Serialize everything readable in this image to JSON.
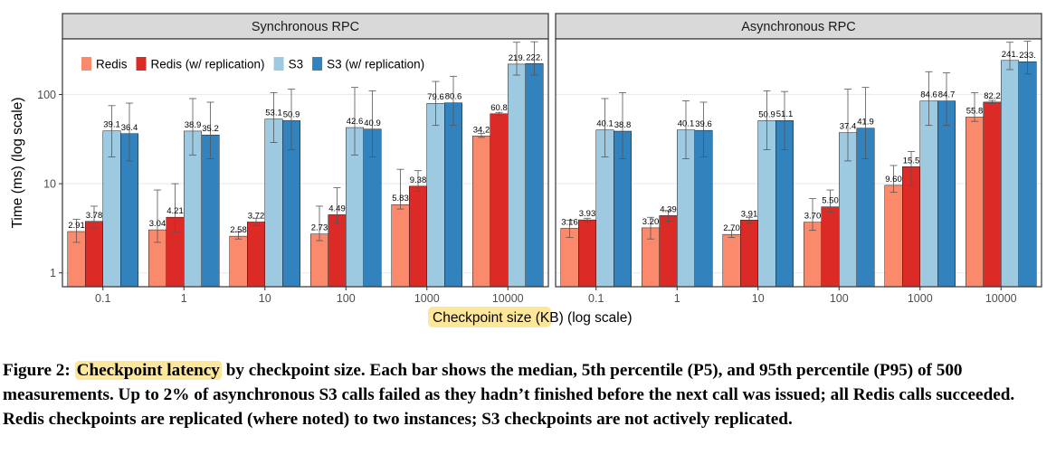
{
  "chart_data": {
    "type": "bar",
    "ylabel": "Time (ms) (log scale)",
    "xlabel_highlight": "Checkpoint size",
    "xlabel_rest": " (KB) (log scale)",
    "yscale": "log",
    "ylim": [
      0.7,
      420
    ],
    "yticks": [
      1,
      10,
      100
    ],
    "ytick_labels": [
      "1",
      "10",
      "100"
    ],
    "grid": true,
    "legend": "top-left",
    "categories": [
      "0.1",
      "1",
      "10",
      "100",
      "1000",
      "10000"
    ],
    "series_names": [
      "Redis",
      "Redis (w/ replication)",
      "S3",
      "S3 (w/ replication)"
    ],
    "colors": [
      "#fb8a6c",
      "#dc2b26",
      "#9ecae1",
      "#3182bd"
    ],
    "panels": [
      {
        "title": "Synchronous RPC",
        "series": [
          {
            "name": "Redis",
            "values": [
              2.91,
              3.04,
              2.58,
              2.73,
              5.83,
              34.2
            ],
            "labels": [
              "2.91",
              "3.04",
              "2.58",
              "2.73",
              "5.83",
              "34.2"
            ],
            "p5": [
              2.2,
              2.2,
              2.4,
              2.3,
              5.2,
              33.0
            ],
            "p95": [
              4.0,
              8.5,
              2.9,
              5.6,
              14.5,
              36.5
            ]
          },
          {
            "name": "Redis (w/ replication)",
            "values": [
              3.78,
              4.21,
              3.72,
              4.49,
              9.38,
              60.8
            ],
            "labels": [
              "3.78",
              "4.21",
              "3.72",
              "4.49",
              "9.38",
              "60.8"
            ],
            "p5": [
              3.2,
              2.9,
              3.4,
              3.6,
              8.2,
              58.0
            ],
            "p95": [
              5.6,
              10.0,
              4.1,
              9.0,
              14.0,
              63.0
            ]
          },
          {
            "name": "S3",
            "values": [
              39.1,
              38.9,
              53.1,
              42.6,
              79.6,
              219
            ],
            "labels": [
              "39.1",
              "38.9",
              "53.1",
              "42.6",
              "79.6",
              "219."
            ],
            "p5": [
              20.0,
              21.0,
              29.0,
              21.0,
              45.0,
              165.0
            ],
            "p95": [
              75.0,
              90.0,
              105.0,
              120.0,
              140.0,
              385.0
            ]
          },
          {
            "name": "S3 (w/ replication)",
            "values": [
              36.4,
              35.2,
              50.9,
              40.9,
              80.6,
              222
            ],
            "labels": [
              "36.4",
              "35.2",
              "50.9",
              "40.9",
              "80.6",
              "222."
            ],
            "p5": [
              18.0,
              19.0,
              24.0,
              20.0,
              45.0,
              165.0
            ],
            "p95": [
              80.0,
              82.0,
              115.0,
              110.0,
              160.0,
              390.0
            ]
          }
        ]
      },
      {
        "title": "Asynchronous RPC",
        "series": [
          {
            "name": "Redis",
            "values": [
              3.16,
              3.2,
              2.7,
              3.7,
              9.6,
              55.8
            ],
            "labels": [
              "3.16",
              "3.20",
              "2.70",
              "3.70",
              "9.60",
              "55.8"
            ],
            "p5": [
              2.5,
              2.4,
              2.5,
              3.0,
              8.0,
              50.0
            ],
            "p95": [
              3.9,
              4.2,
              3.0,
              6.8,
              16.0,
              105.0
            ]
          },
          {
            "name": "Redis (w/ replication)",
            "values": [
              3.93,
              4.39,
              3.91,
              5.5,
              15.5,
              82.2
            ],
            "labels": [
              "3.93",
              "4.39",
              "3.91",
              "5.50",
              "15.5",
              "82.2"
            ],
            "p5": [
              3.7,
              3.8,
              3.6,
              4.8,
              9.5,
              79.0
            ],
            "p95": [
              4.1,
              5.0,
              4.2,
              8.5,
              23.0,
              86.0
            ]
          },
          {
            "name": "S3",
            "values": [
              40.1,
              40.1,
              50.9,
              37.4,
              84.6,
              241
            ],
            "labels": [
              "40.1",
              "40.1",
              "50.9",
              "37.4",
              "84.6",
              "241."
            ],
            "p5": [
              20.0,
              19.0,
              24.0,
              18.0,
              45.0,
              190.0
            ],
            "p95": [
              90.0,
              85.0,
              110.0,
              115.0,
              180.0,
              385.0
            ]
          },
          {
            "name": "S3 (w/ replication)",
            "values": [
              38.8,
              39.6,
              51.1,
              41.9,
              84.7,
              233
            ],
            "labels": [
              "38.8",
              "39.6",
              "51.1",
              "41.9",
              "84.7",
              "233."
            ],
            "p5": [
              19.0,
              20.0,
              24.0,
              19.0,
              45.0,
              170.0
            ],
            "p95": [
              105.0,
              82.0,
              108.0,
              120.0,
              175.0,
              395.0
            ]
          }
        ]
      }
    ]
  },
  "caption": {
    "prefix": "Figure 2: ",
    "highlight": "Checkpoint latency",
    "body": " by checkpoint size. Each bar shows the median, 5th percentile (P5), and 95th percentile (P95) of 500 measurements. Up to 2% of asynchronous S3 calls failed as they hadn’t finished before the next call was issued; all Redis calls succeeded. Redis checkpoints are replicated (where noted) to two instances; S3 checkpoints are not actively replicated."
  }
}
